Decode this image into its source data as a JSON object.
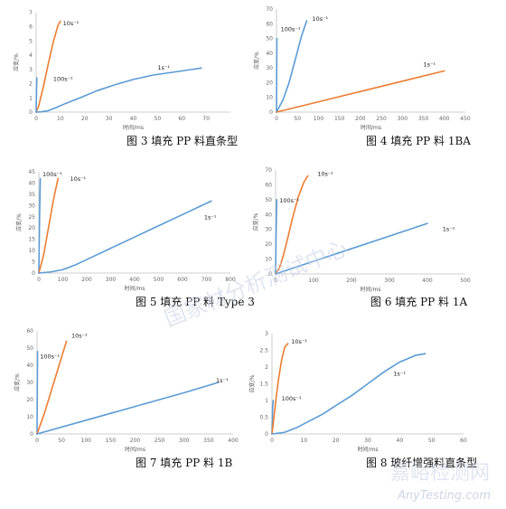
{
  "watermark": {
    "center_text": "国家材分析测试中心",
    "logo_text": "嘉峪检测网",
    "logo_url_text": "AnyTesting.com"
  },
  "colors": {
    "orange": "#ED7D31",
    "blue": "#5B9BD5",
    "axis": "#BFBFBF"
  },
  "chart_data": [
    {
      "id": "fig3",
      "type": "line",
      "title": "",
      "caption": "图 3 填充 PP 料直条型",
      "xlabel": "时间/ms",
      "ylabel": "应变/%",
      "xlim": [
        0,
        80
      ],
      "ylim": [
        0,
        7
      ],
      "xticks": [
        0,
        10,
        20,
        30,
        40,
        50,
        60,
        70
      ],
      "yticks": [
        0,
        1,
        2,
        3,
        4,
        5,
        6,
        7
      ],
      "series": [
        {
          "name": "10s⁻¹",
          "color": "#ED7D31",
          "x": [
            0,
            1,
            3,
            5,
            7,
            9,
            10
          ],
          "y": [
            0,
            0.4,
            1.8,
            3.4,
            4.9,
            6.1,
            6.4
          ]
        },
        {
          "name": "100s⁻¹",
          "color": "#5B9BD5",
          "x": [
            0,
            0.15,
            0.3
          ],
          "y": [
            0,
            1.5,
            2.4
          ]
        },
        {
          "name": "1s⁻¹",
          "color": "#5B9BD5",
          "x": [
            0,
            2,
            5,
            8,
            12,
            18,
            25,
            32,
            40,
            48,
            56,
            64,
            68
          ],
          "y": [
            0,
            0.02,
            0.1,
            0.3,
            0.6,
            1.0,
            1.5,
            1.9,
            2.3,
            2.6,
            2.8,
            3.0,
            3.1
          ]
        }
      ],
      "annotations": [
        {
          "text": "10s⁻¹",
          "x": 11,
          "y": 6.1
        },
        {
          "text": "100s⁻¹",
          "x": 7,
          "y": 2.2
        },
        {
          "text": "1s⁻¹",
          "x": 50,
          "y": 3.0
        }
      ]
    },
    {
      "id": "fig4",
      "type": "line",
      "title": "",
      "caption": "图 4 填充 PP 料 1BA",
      "xlabel": "时间/ms",
      "ylabel": "应变/%",
      "xlim": [
        0,
        450
      ],
      "ylim": [
        0,
        70
      ],
      "xticks": [
        0,
        50,
        100,
        150,
        200,
        250,
        300,
        350,
        400,
        450
      ],
      "yticks": [
        0,
        10,
        20,
        30,
        40,
        50,
        60,
        70
      ],
      "series": [
        {
          "name": "100s⁻¹",
          "color": "#5B9BD5",
          "x": [
            0,
            0.5,
            1
          ],
          "y": [
            0,
            30,
            50
          ]
        },
        {
          "name": "10s⁻¹",
          "color": "#5B9BD5",
          "x": [
            0,
            15,
            30,
            45,
            60,
            72
          ],
          "y": [
            0,
            8,
            20,
            36,
            52,
            62
          ]
        },
        {
          "name": "1s⁻¹",
          "color": "#ED7D31",
          "x": [
            0,
            100,
            200,
            300,
            400
          ],
          "y": [
            0,
            7,
            14,
            21,
            28
          ]
        }
      ],
      "annotations": [
        {
          "text": "10s⁻¹",
          "x": 85,
          "y": 62
        },
        {
          "text": "100s⁻¹",
          "x": 10,
          "y": 55
        },
        {
          "text": "1s⁻¹",
          "x": 350,
          "y": 31
        }
      ]
    },
    {
      "id": "fig5",
      "type": "line",
      "title": "",
      "caption": "图 5 填充 PP 料 Type 3",
      "xlabel": "时间/ms",
      "ylabel": "应变/%",
      "xlim": [
        0,
        800
      ],
      "ylim": [
        0,
        45
      ],
      "xticks": [
        0,
        100,
        200,
        300,
        400,
        500,
        600,
        700,
        800
      ],
      "yticks": [
        0,
        5,
        10,
        15,
        20,
        25,
        30,
        35,
        40,
        45
      ],
      "series": [
        {
          "name": "100s⁻¹",
          "color": "#5B9BD5",
          "x": [
            0,
            3,
            6
          ],
          "y": [
            0,
            25,
            42
          ]
        },
        {
          "name": "10s⁻¹",
          "color": "#ED7D31",
          "x": [
            0,
            20,
            40,
            60,
            80
          ],
          "y": [
            0,
            8,
            20,
            32,
            42
          ]
        },
        {
          "name": "1s⁻¹",
          "color": "#5B9BD5",
          "x": [
            0,
            50,
            100,
            150,
            200,
            300,
            400,
            500,
            600,
            720
          ],
          "y": [
            0,
            0.5,
            1.5,
            3.5,
            6,
            11,
            16,
            21,
            26,
            32
          ]
        }
      ],
      "annotations": [
        {
          "text": "100s⁻¹",
          "x": 15,
          "y": 43
        },
        {
          "text": "10s⁻¹",
          "x": 130,
          "y": 41
        },
        {
          "text": "1s⁻¹",
          "x": 690,
          "y": 24
        }
      ]
    },
    {
      "id": "fig6",
      "type": "line",
      "title": "",
      "caption": "图 6 填充 PP 料 1A",
      "xlabel": "时间/ms",
      "ylabel": "应变/%",
      "xlim": [
        0,
        500
      ],
      "ylim": [
        0,
        70
      ],
      "xticks": [
        0,
        100,
        200,
        300,
        400,
        500
      ],
      "yticks": [
        0,
        10,
        20,
        30,
        40,
        50,
        60,
        70
      ],
      "series": [
        {
          "name": "100s⁻¹",
          "color": "#5B9BD5",
          "x": [
            0,
            1.5,
            3
          ],
          "y": [
            0,
            30,
            50
          ]
        },
        {
          "name": "10s⁻¹",
          "color": "#ED7D31",
          "x": [
            0,
            10,
            20,
            30,
            45,
            60,
            75,
            85
          ],
          "y": [
            0,
            4,
            12,
            22,
            38,
            52,
            62,
            66
          ]
        },
        {
          "name": "1s⁻¹",
          "color": "#5B9BD5",
          "x": [
            0,
            100,
            200,
            300,
            400
          ],
          "y": [
            0,
            8.5,
            17,
            25.5,
            34
          ]
        }
      ],
      "annotations": [
        {
          "text": "10s⁻¹",
          "x": 110,
          "y": 66
        },
        {
          "text": "100s⁻¹",
          "x": 10,
          "y": 48
        },
        {
          "text": "1s⁻¹",
          "x": 440,
          "y": 29
        }
      ]
    },
    {
      "id": "fig7",
      "type": "line",
      "title": "",
      "caption": "图 7 填充 PP 料 1B",
      "xlabel": "时间/ms",
      "ylabel": "应变/%",
      "xlim": [
        0,
        400
      ],
      "ylim": [
        0,
        60
      ],
      "xticks": [
        0,
        50,
        100,
        150,
        200,
        250,
        300,
        350,
        400
      ],
      "yticks": [
        0,
        10,
        20,
        30,
        40,
        50,
        60
      ],
      "series": [
        {
          "name": "100s⁻¹",
          "color": "#5B9BD5",
          "x": [
            0,
            0.5,
            1
          ],
          "y": [
            0,
            28,
            48
          ]
        },
        {
          "name": "10s⁻¹",
          "color": "#ED7D31",
          "x": [
            0,
            15,
            30,
            45,
            60
          ],
          "y": [
            0,
            12,
            26,
            40,
            54
          ]
        },
        {
          "name": "1s⁻¹",
          "color": "#5B9BD5",
          "x": [
            0,
            100,
            200,
            300,
            370
          ],
          "y": [
            0,
            8,
            16,
            24,
            30
          ]
        }
      ],
      "annotations": [
        {
          "text": "10s⁻¹",
          "x": 70,
          "y": 56
        },
        {
          "text": "100s⁻¹",
          "x": 6,
          "y": 44
        },
        {
          "text": "1s⁻¹",
          "x": 365,
          "y": 30
        }
      ]
    },
    {
      "id": "fig8",
      "type": "line",
      "title": "",
      "caption": "图 8 玻纤增强料直条型",
      "xlabel": "时间/ms",
      "ylabel": "应变/%",
      "xlim": [
        0,
        60
      ],
      "ylim": [
        0,
        3
      ],
      "xticks": [
        0,
        10,
        20,
        30,
        40,
        50,
        60
      ],
      "yticks": [
        0,
        0.5,
        1,
        1.5,
        2,
        2.5,
        3
      ],
      "series": [
        {
          "name": "100s⁻¹",
          "color": "#5B9BD5",
          "x": [
            0,
            0.2,
            0.4
          ],
          "y": [
            0,
            0.8,
            1.0
          ]
        },
        {
          "name": "10s⁻¹",
          "color": "#ED7D31",
          "x": [
            0,
            0.5,
            1.2,
            2,
            3,
            4,
            5
          ],
          "y": [
            0,
            0.4,
            1.0,
            1.6,
            2.2,
            2.6,
            2.7
          ]
        },
        {
          "name": "1s⁻¹",
          "color": "#5B9BD5",
          "x": [
            0,
            4,
            8,
            12,
            16,
            20,
            25,
            30,
            35,
            40,
            45,
            48
          ],
          "y": [
            0,
            0.05,
            0.2,
            0.4,
            0.6,
            0.85,
            1.15,
            1.5,
            1.85,
            2.15,
            2.35,
            2.4
          ]
        }
      ],
      "annotations": [
        {
          "text": "10s⁻¹",
          "x": 6,
          "y": 2.7
        },
        {
          "text": "100s⁻¹",
          "x": 3,
          "y": 1.0
        },
        {
          "text": "1s⁻¹",
          "x": 38,
          "y": 1.75
        }
      ]
    }
  ]
}
